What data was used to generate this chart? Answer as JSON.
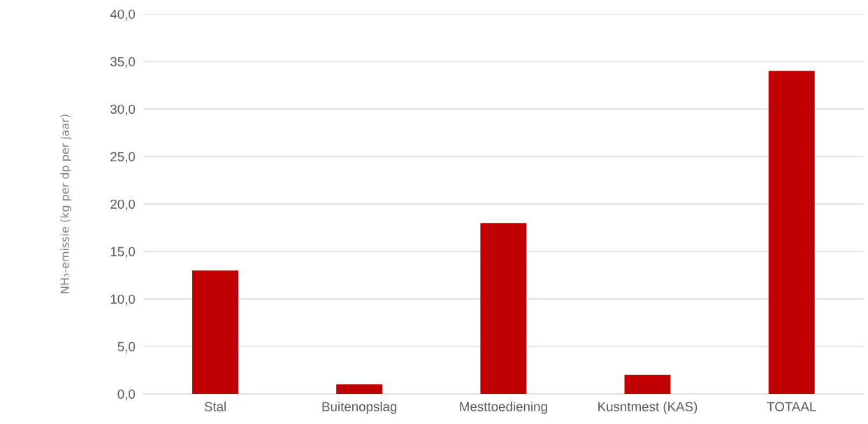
{
  "chart_data": {
    "type": "bar",
    "ylabel": "NH₃-emissie (kg per dp per jaar)",
    "categories": [
      "Stal",
      "Buitenopslag",
      "Mesttoediening",
      "Kusntmest (KAS)",
      "TOTAAL"
    ],
    "values": [
      13,
      1,
      18,
      2,
      34
    ],
    "color": "#c00000",
    "ylim": [
      0,
      40
    ],
    "yticks": [
      {
        "value": 0,
        "label": "0,0"
      },
      {
        "value": 5,
        "label": "5,0"
      },
      {
        "value": 10,
        "label": "10,0"
      },
      {
        "value": 15,
        "label": "15,0"
      },
      {
        "value": 20,
        "label": "20,0"
      },
      {
        "value": 25,
        "label": "25,0"
      },
      {
        "value": 30,
        "label": "30,0"
      },
      {
        "value": 35,
        "label": "35,0"
      },
      {
        "value": 40,
        "label": "40,0"
      }
    ],
    "grid": "y"
  }
}
